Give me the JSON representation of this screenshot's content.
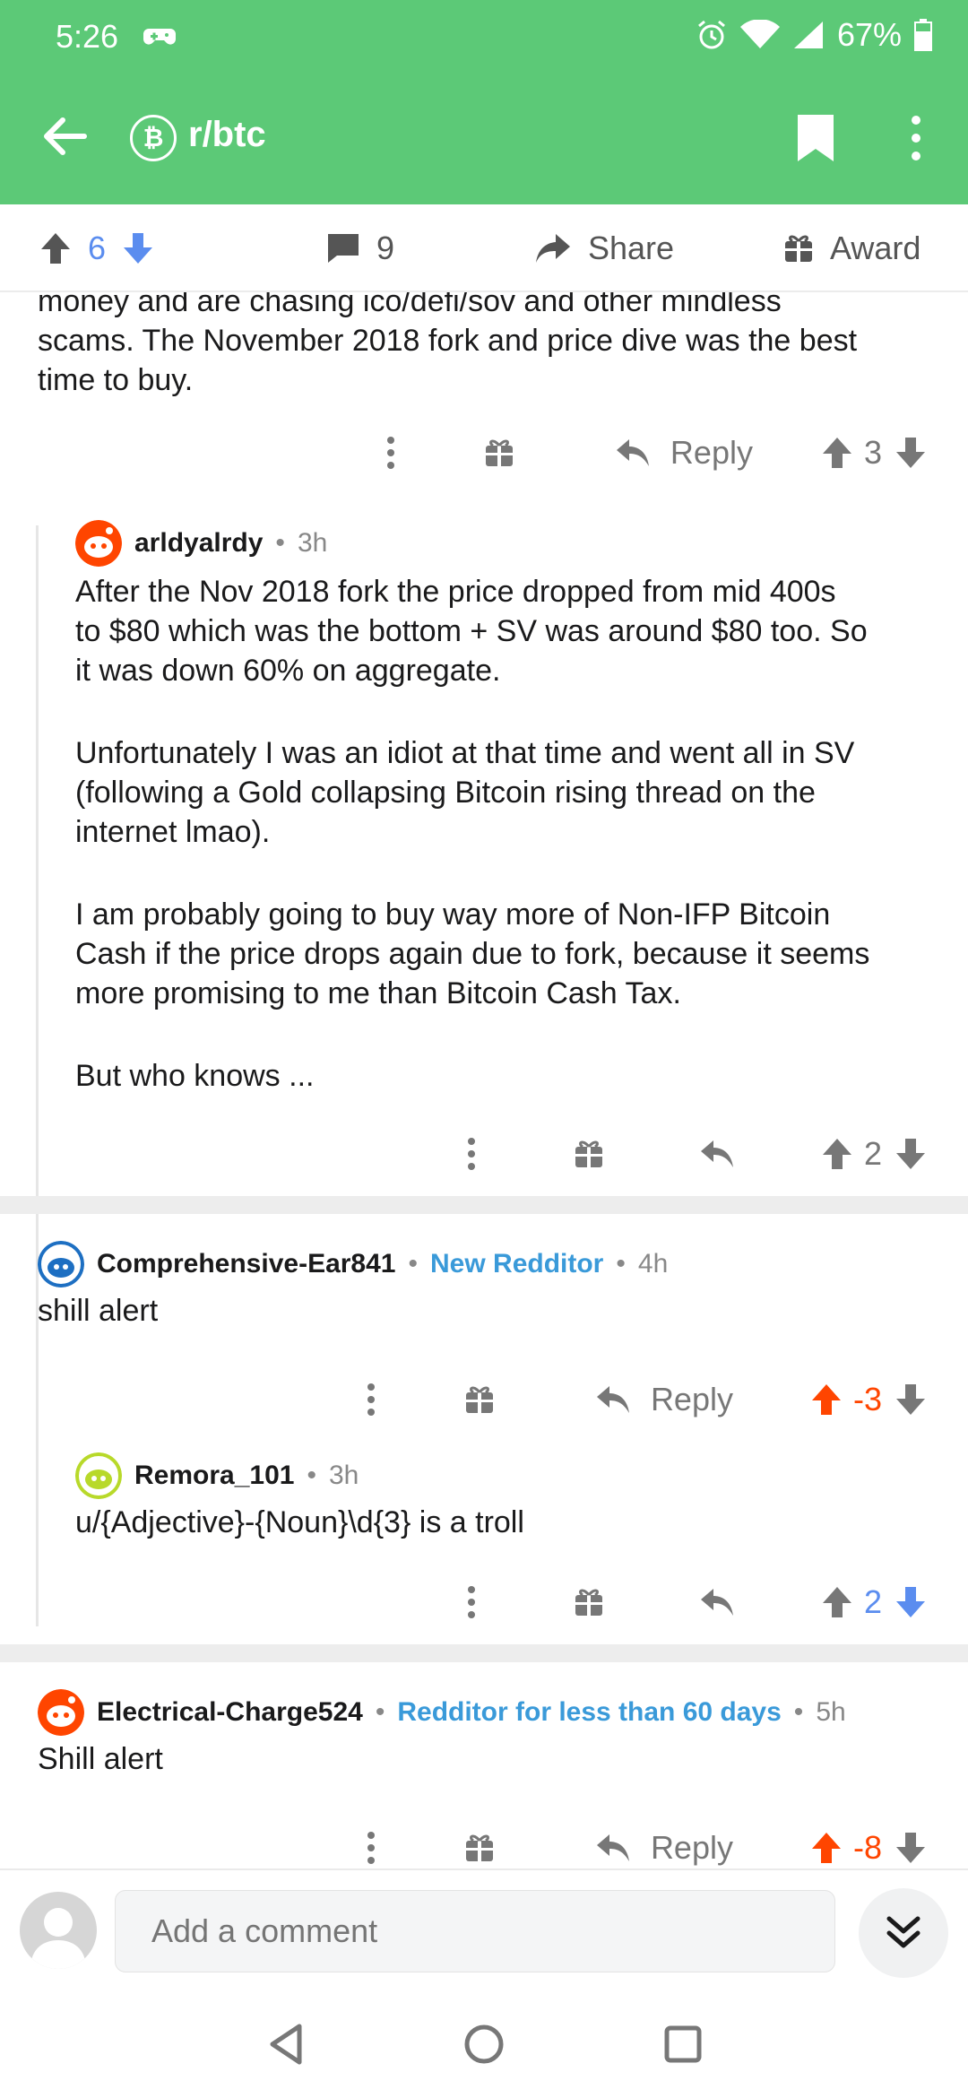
{
  "status": {
    "time": "5:26",
    "battery": "67%"
  },
  "header": {
    "subreddit": "r/btc"
  },
  "post_actions": {
    "upvotes": "6",
    "comments": "9",
    "share": "Share",
    "award": "Award"
  },
  "comments": [
    {
      "text_lines": [
        "money and are chasing ico/defi/sov and other mindless",
        "scams. The November 2018 fork and price dive was the best",
        "time to buy."
      ],
      "reply": "Reply",
      "score": "3"
    },
    {
      "author": "arldyalrdy",
      "time": "3h",
      "paragraphs": [
        [
          "After the Nov 2018 fork the price dropped from mid 400s",
          "to $80 which was the bottom + SV was around $80 too. So",
          "it was down 60% on aggregate."
        ],
        [
          "Unfortunately I was an idiot at that time and went all in SV",
          "(following a Gold collapsing Bitcoin rising thread on the",
          "internet lmao)."
        ],
        [
          "I am probably going to buy way more of Non-IFP Bitcoin",
          "Cash if the price drops again due to fork, because it seems",
          "more promising to me than Bitcoin Cash Tax."
        ],
        [
          "But who knows ..."
        ]
      ],
      "score": "2"
    },
    {
      "author": "Comprehensive-Ear841",
      "flair": "New Redditor",
      "time": "4h",
      "text": "shill alert",
      "reply": "Reply",
      "score": "-3"
    },
    {
      "author": "Remora_101",
      "time": "3h",
      "text": "u/{Adjective}-{Noun}\\d{3} is a troll",
      "score": "2"
    },
    {
      "author": "Electrical-Charge524",
      "flair": "Redditor for less than 60 days",
      "time": "5h",
      "text": "Shill alert",
      "reply": "Reply",
      "score": "-8"
    }
  ],
  "composer": {
    "placeholder": "Add a comment"
  },
  "separator": "•",
  "colors": {
    "header": "#5cc977",
    "upvote": "#ff4500",
    "downvote": "#5b8def",
    "flair": "#3a9ad9"
  }
}
